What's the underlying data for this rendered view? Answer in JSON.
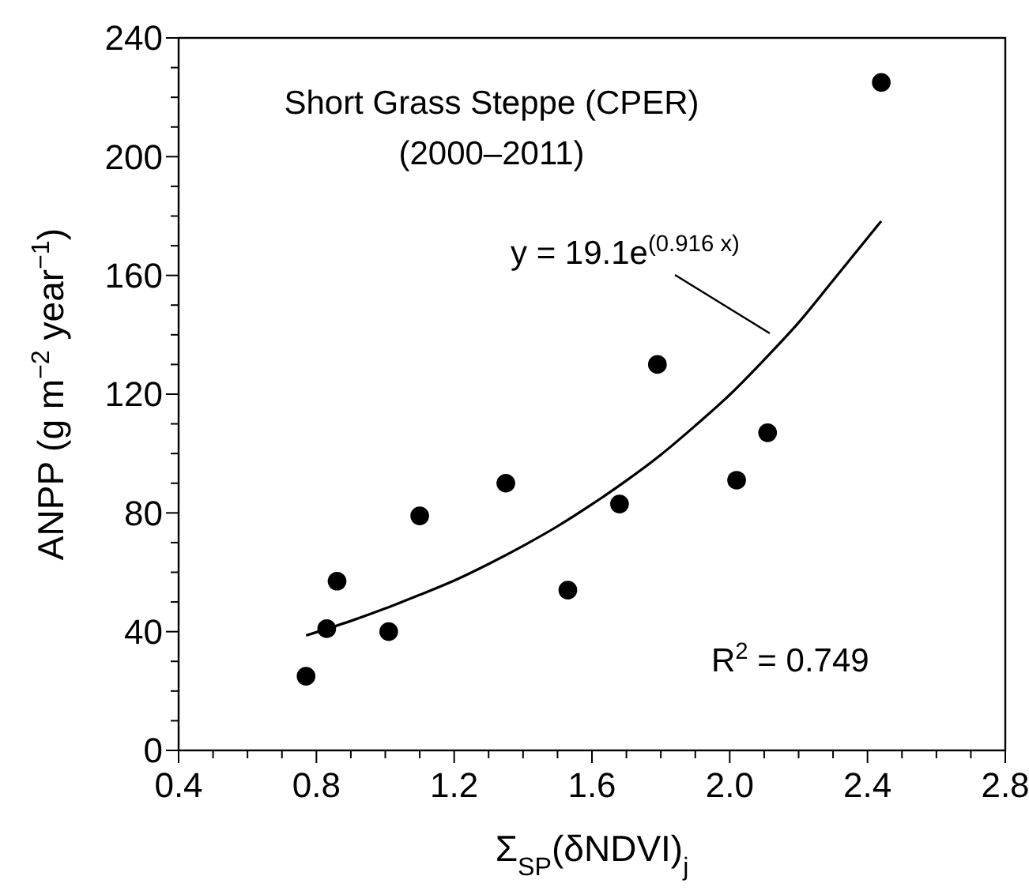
{
  "chart_data": {
    "type": "scatter",
    "title": "Short Grass Steppe (CPER)",
    "subtitle": "(2000–2011)",
    "xlabel": "Σ$_{SP}$(δNDVI)$_{j}$",
    "ylabel": "ANPP (g m$^{−2}$ year$^{−1}$)",
    "annotations": [
      "y = 19.1e$^{(0.916 x)}$",
      "R$^{2}$ = 0.749"
    ],
    "xlim": [
      0.4,
      2.8
    ],
    "ylim": [
      0,
      240
    ],
    "xticks": [
      0.4,
      {
        "value": 0.5,
        "label": null
      },
      {
        "value": 0.6,
        "label": null
      },
      {
        "value": 0.7,
        "label": null
      },
      {
        "value": 0.8,
        "label": "0.8"
      },
      {
        "value": 0.9,
        "label": null
      },
      {
        "value": 1.0,
        "label": null
      },
      {
        "value": 1.1,
        "label": null
      },
      {
        "value": 1.2,
        "label": "1.2"
      },
      {
        "value": 1.3,
        "label": null
      },
      {
        "value": 1.4,
        "label": null
      },
      {
        "value": 1.5,
        "label": null
      },
      {
        "value": 1.6,
        "label": "1.6"
      },
      {
        "value": 1.7,
        "label": null
      },
      {
        "value": 1.8,
        "label": null
      },
      {
        "value": 1.9,
        "label": null
      },
      {
        "value": 2.0,
        "label": "2.0"
      },
      {
        "value": 2.1,
        "label": null
      },
      {
        "value": 2.2,
        "label": null
      },
      {
        "value": 2.3,
        "label": null
      },
      {
        "value": 2.4,
        "label": "2.4"
      },
      {
        "value": 2.5,
        "label": null
      },
      {
        "value": 2.6,
        "label": null
      },
      {
        "value": 2.7,
        "label": null
      },
      {
        "value": 2.8,
        "label": "2.8"
      }
    ],
    "yticks": [
      0,
      {
        "value": 10,
        "label": null
      },
      {
        "value": 20,
        "label": null
      },
      {
        "value": 30,
        "label": null
      },
      40,
      {
        "value": 50,
        "label": null
      },
      {
        "value": 60,
        "label": null
      },
      {
        "value": 70,
        "label": null
      },
      80,
      {
        "value": 90,
        "label": null
      },
      {
        "value": 100,
        "label": null
      },
      {
        "value": 110,
        "label": null
      },
      120,
      {
        "value": 130,
        "label": null
      },
      {
        "value": 140,
        "label": null
      },
      {
        "value": 150,
        "label": null
      },
      160,
      {
        "value": 170,
        "label": null
      },
      {
        "value": 180,
        "label": null
      },
      {
        "value": 190,
        "label": null
      },
      200,
      {
        "value": 210,
        "label": null
      },
      {
        "value": 220,
        "label": null
      },
      {
        "value": 230,
        "label": null
      },
      240
    ],
    "grid": false,
    "series": [
      {
        "color": "#000000",
        "marker": "circle",
        "x": [
          0.77,
          0.83,
          0.86,
          1.01,
          1.1,
          1.35,
          1.53,
          1.68,
          1.79,
          2.02,
          2.11,
          2.44
        ],
        "values": [
          25,
          41,
          57,
          40,
          79,
          90,
          54,
          83,
          130,
          91,
          107,
          225
        ]
      },
      {
        "type": "line",
        "color": "#000000",
        "line_style": "solid",
        "x": [
          0.77,
          0.9,
          1.0,
          1.1,
          1.2,
          1.3,
          1.4,
          1.5,
          1.6,
          1.7,
          1.8,
          1.9,
          2.0,
          2.1,
          2.2,
          2.3,
          2.44
        ],
        "values": [
          38.7,
          43.6,
          47.8,
          52.4,
          57.2,
          62.8,
          68.9,
          75.5,
          82.9,
          90.9,
          99.6,
          109.4,
          119.8,
          131.6,
          144.1,
          158.3,
          178.3
        ]
      }
    ]
  }
}
